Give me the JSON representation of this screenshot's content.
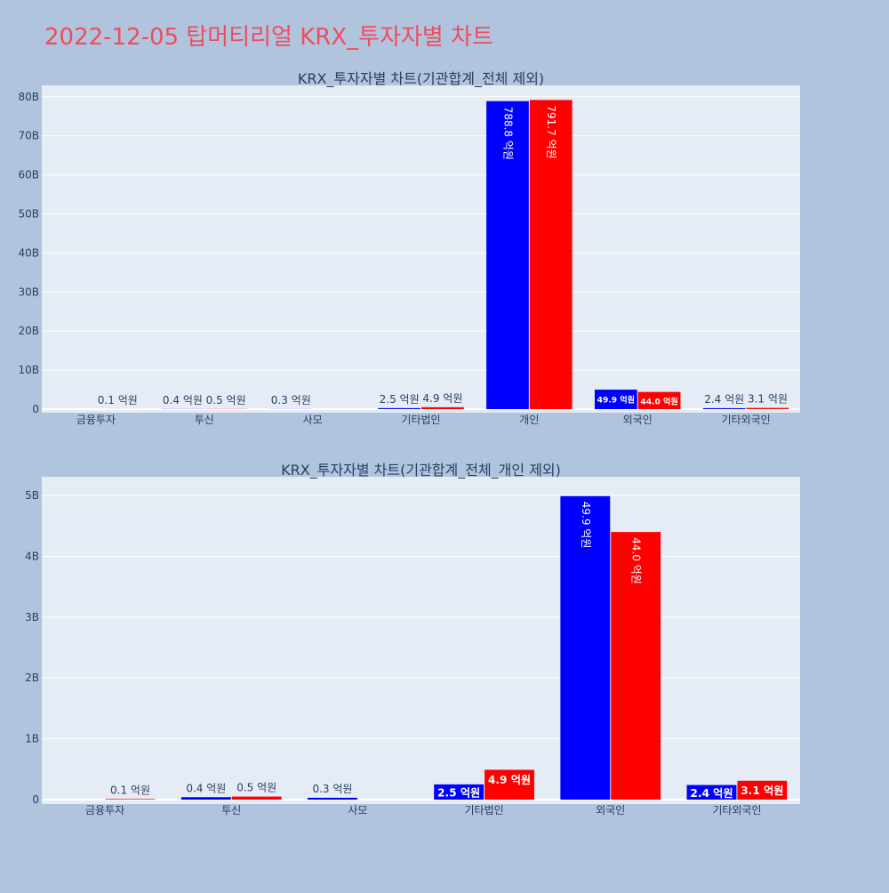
{
  "page_title": "2022-12-05 탑머티리얼 KRX_투자자별 차트",
  "colors": {
    "background": "#b0c4de",
    "plot_bg": "#e5ecf6",
    "title": "#ef4d5d",
    "text": "#2a3f5f",
    "buy": "#0000ff",
    "sell": "#ff0000"
  },
  "chart_data": [
    {
      "type": "bar",
      "title": "KRX_투자자별 차트(기관합계_전체 제외)",
      "categories": [
        "금융투자",
        "투신",
        "사모",
        "기타법인",
        "개인",
        "외국인",
        "기타외국인"
      ],
      "series": [
        {
          "color": "#0000ff",
          "values": [
            0,
            0.4,
            0.3,
            2.5,
            788.8,
            49.9,
            2.4
          ],
          "labels": [
            "",
            "0.4 억원",
            "0.3 억원",
            "2.5 억원",
            "788.8 억원",
            "49.9 억원",
            "2.4 억원"
          ]
        },
        {
          "color": "#ff0000",
          "values": [
            0.1,
            0.5,
            0,
            4.9,
            791.7,
            44.0,
            3.1
          ],
          "labels": [
            "0.1 억원",
            "0.5 억원",
            "",
            "4.9 억원",
            "791.7 억원",
            "44.0 억원",
            "3.1 억원"
          ]
        }
      ],
      "unit_per_value": 100000000,
      "yticks": [
        0,
        10000000000,
        20000000000,
        30000000000,
        40000000000,
        50000000000,
        60000000000,
        70000000000,
        80000000000
      ],
      "ytick_labels": [
        "0",
        "10B",
        "20B",
        "30B",
        "40B",
        "50B",
        "60B",
        "70B",
        "80B"
      ],
      "ylim": [
        0,
        82000000000
      ],
      "grid": true
    },
    {
      "type": "bar",
      "title": "KRX_투자자별 차트(기관합계_전체_개인 제외)",
      "categories": [
        "금융투자",
        "투신",
        "사모",
        "기타법인",
        "외국인",
        "기타외국인"
      ],
      "series": [
        {
          "color": "#0000ff",
          "values": [
            0,
            0.4,
            0.3,
            2.5,
            49.9,
            2.4
          ],
          "labels": [
            "",
            "0.4 억원",
            "0.3 억원",
            "2.5 억원",
            "49.9 억원",
            "2.4 억원"
          ]
        },
        {
          "color": "#ff0000",
          "values": [
            0.1,
            0.5,
            0,
            4.9,
            44.0,
            3.1
          ],
          "labels": [
            "0.1 억원",
            "0.5 억원",
            "",
            "4.9 억원",
            "44.0 억원",
            "3.1 억원"
          ]
        }
      ],
      "unit_per_value": 100000000,
      "yticks": [
        0,
        1000000000,
        2000000000,
        3000000000,
        4000000000,
        5000000000
      ],
      "ytick_labels": [
        "0",
        "1B",
        "2B",
        "3B",
        "4B",
        "5B"
      ],
      "ylim": [
        0,
        5250000000
      ],
      "grid": true
    }
  ]
}
